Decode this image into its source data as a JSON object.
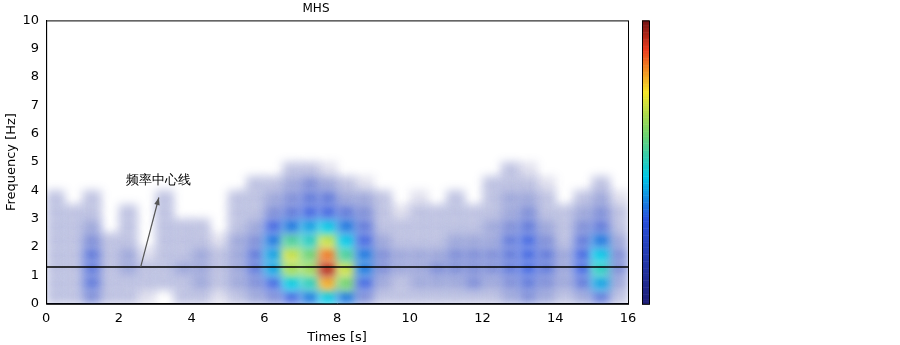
{
  "chart_data": {
    "type": "heatmap",
    "title": "MHS",
    "x_label": "Times [s]",
    "y_label": "Frequency [Hz]",
    "annotation": "频率中心线",
    "center_frequency": 1.3,
    "xlim": [
      0,
      16
    ],
    "xticks": [
      0,
      2,
      4,
      6,
      8,
      10,
      12,
      14,
      16
    ],
    "ylim": [
      0,
      10
    ],
    "yticks": [
      0,
      1,
      2,
      3,
      4,
      5,
      6,
      7,
      8,
      9,
      10
    ],
    "grid": false,
    "colorbar_range": [
      0,
      1
    ],
    "x": [
      0.25,
      0.75,
      1.25,
      1.75,
      2.25,
      2.75,
      3.25,
      3.75,
      4.25,
      4.75,
      5.25,
      5.75,
      6.25,
      6.75,
      7.25,
      7.75,
      8.25,
      8.75,
      9.25,
      9.75,
      10.25,
      10.75,
      11.25,
      11.75,
      12.25,
      12.75,
      13.25,
      13.75,
      14.25,
      14.75,
      15.25,
      15.75
    ],
    "y": [
      0.25,
      0.75,
      1.25,
      1.75,
      2.25,
      2.75,
      3.25,
      3.75,
      4.25,
      4.75
    ],
    "cells": [
      [
        0.1,
        0.1,
        0.1,
        0.1,
        0.1,
        0.1,
        0.1,
        0.1,
        0,
        0
      ],
      [
        0.1,
        0.1,
        0.1,
        0.1,
        0.1,
        0.1,
        0.1,
        0,
        0,
        0
      ],
      [
        0.2,
        0.25,
        0.25,
        0.25,
        0.2,
        0.15,
        0.1,
        0.1,
        0,
        0
      ],
      [
        0.1,
        0.1,
        0.1,
        0.1,
        0.1,
        0,
        0,
        0,
        0,
        0
      ],
      [
        0.1,
        0.1,
        0.15,
        0.15,
        0.1,
        0.1,
        0.1,
        0,
        0,
        0
      ],
      [
        0.05,
        0.1,
        0.1,
        0.05,
        0,
        0,
        0,
        0,
        0,
        0
      ],
      [
        0,
        0.1,
        0.1,
        0.1,
        0.1,
        0.1,
        0.1,
        0.1,
        0,
        0
      ],
      [
        0.1,
        0.1,
        0.15,
        0.1,
        0.1,
        0.1,
        0,
        0,
        0,
        0
      ],
      [
        0.1,
        0.15,
        0.15,
        0.15,
        0.1,
        0.1,
        0,
        0,
        0,
        0
      ],
      [
        0.05,
        0.1,
        0.1,
        0.1,
        0.05,
        0,
        0,
        0,
        0,
        0
      ],
      [
        0.1,
        0.15,
        0.15,
        0.15,
        0.15,
        0.1,
        0.1,
        0.1,
        0,
        0
      ],
      [
        0.15,
        0.2,
        0.25,
        0.25,
        0.2,
        0.15,
        0.1,
        0.1,
        0.1,
        0
      ],
      [
        0.2,
        0.3,
        0.4,
        0.4,
        0.35,
        0.3,
        0.2,
        0.15,
        0.1,
        0
      ],
      [
        0.3,
        0.45,
        0.65,
        0.7,
        0.55,
        0.35,
        0.25,
        0.2,
        0.15,
        0.1
      ],
      [
        0.35,
        0.5,
        0.65,
        0.6,
        0.5,
        0.4,
        0.3,
        0.25,
        0.2,
        0.1
      ],
      [
        0.45,
        0.8,
        0.95,
        0.85,
        0.7,
        0.45,
        0.3,
        0.25,
        0.15,
        0.05
      ],
      [
        0.35,
        0.6,
        0.7,
        0.55,
        0.45,
        0.35,
        0.25,
        0.15,
        0.1,
        0
      ],
      [
        0.2,
        0.3,
        0.35,
        0.35,
        0.3,
        0.25,
        0.2,
        0.15,
        0.05,
        0
      ],
      [
        0.1,
        0.15,
        0.2,
        0.2,
        0.15,
        0.1,
        0.1,
        0.1,
        0,
        0
      ],
      [
        0.1,
        0.1,
        0.15,
        0.15,
        0.1,
        0.1,
        0.05,
        0,
        0,
        0
      ],
      [
        0.1,
        0.15,
        0.15,
        0.15,
        0.1,
        0.1,
        0.1,
        0.05,
        0,
        0
      ],
      [
        0.1,
        0.15,
        0.2,
        0.15,
        0.1,
        0.1,
        0.1,
        0,
        0,
        0
      ],
      [
        0.1,
        0.15,
        0.2,
        0.2,
        0.15,
        0.1,
        0.1,
        0.1,
        0,
        0
      ],
      [
        0.1,
        0.2,
        0.2,
        0.2,
        0.15,
        0.1,
        0.1,
        0,
        0,
        0
      ],
      [
        0.1,
        0.15,
        0.2,
        0.2,
        0.15,
        0.15,
        0.1,
        0.1,
        0.1,
        0
      ],
      [
        0.15,
        0.2,
        0.25,
        0.25,
        0.25,
        0.2,
        0.15,
        0.15,
        0.1,
        0.1
      ],
      [
        0.2,
        0.25,
        0.3,
        0.3,
        0.3,
        0.25,
        0.2,
        0.15,
        0.1,
        0.05
      ],
      [
        0.15,
        0.2,
        0.25,
        0.25,
        0.2,
        0.15,
        0.1,
        0.1,
        0.05,
        0
      ],
      [
        0.1,
        0.15,
        0.15,
        0.15,
        0.1,
        0.1,
        0.1,
        0,
        0,
        0
      ],
      [
        0.15,
        0.25,
        0.3,
        0.3,
        0.25,
        0.2,
        0.15,
        0.1,
        0,
        0
      ],
      [
        0.25,
        0.4,
        0.5,
        0.45,
        0.35,
        0.25,
        0.2,
        0.15,
        0.1,
        0
      ],
      [
        0.1,
        0.15,
        0.2,
        0.2,
        0.15,
        0.1,
        0.1,
        0.05,
        0,
        0
      ]
    ]
  }
}
